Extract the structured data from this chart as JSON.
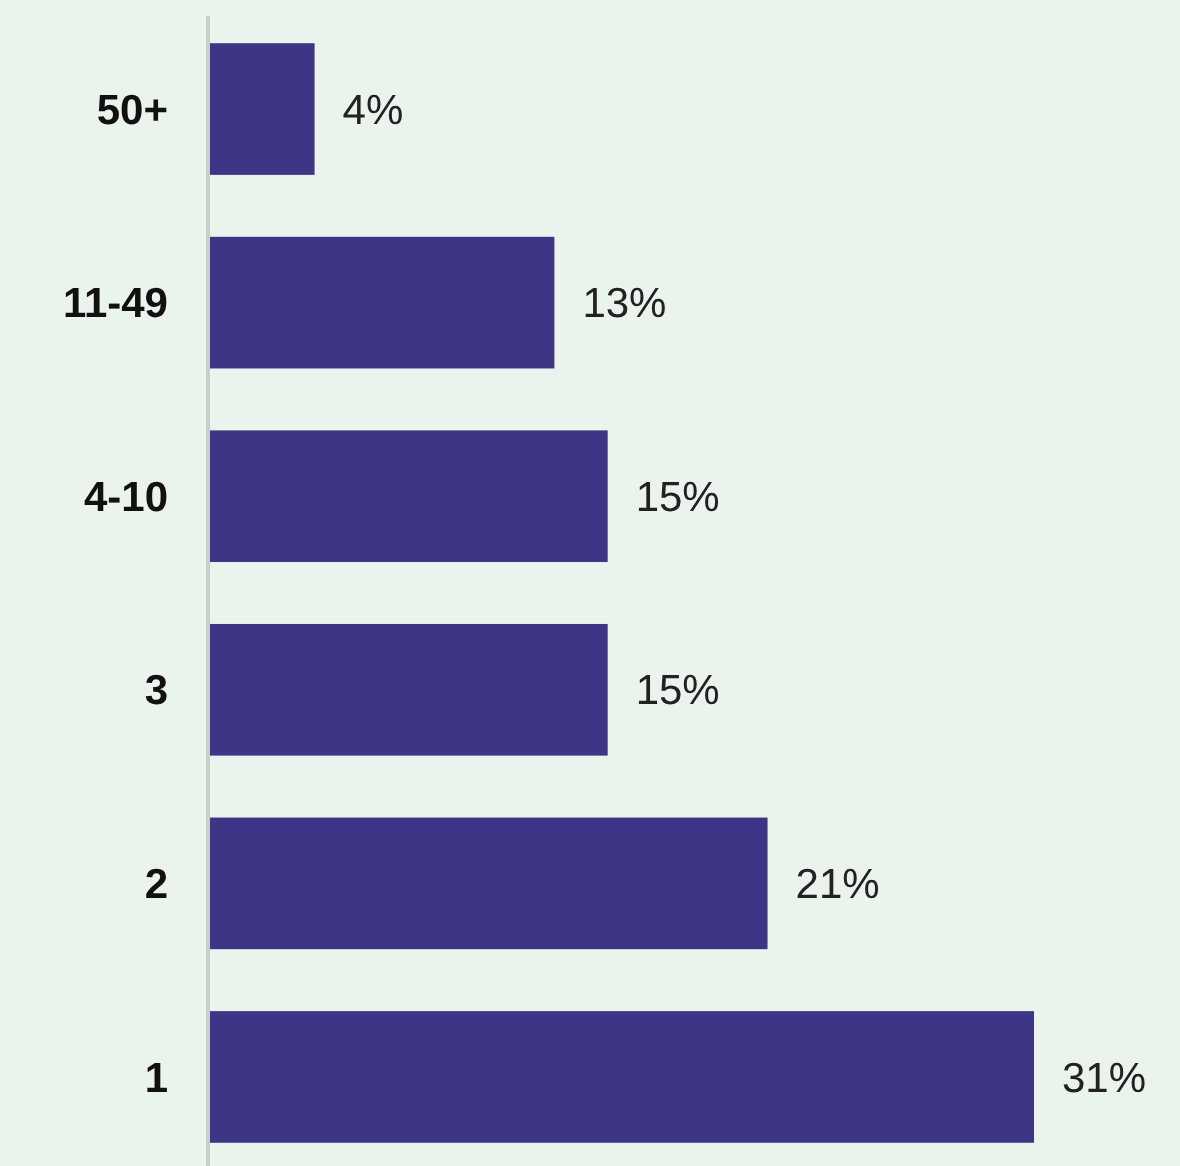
{
  "chart_data": {
    "type": "bar",
    "orientation": "horizontal",
    "categories": [
      "50+",
      "11-49",
      "4-10",
      "3",
      "2",
      "1"
    ],
    "values": [
      4,
      13,
      15,
      15,
      21,
      31
    ],
    "color": "#3d3585",
    "value_labels": [
      "4%",
      "13%",
      "15%",
      "15%",
      "21%",
      "31%"
    ]
  }
}
